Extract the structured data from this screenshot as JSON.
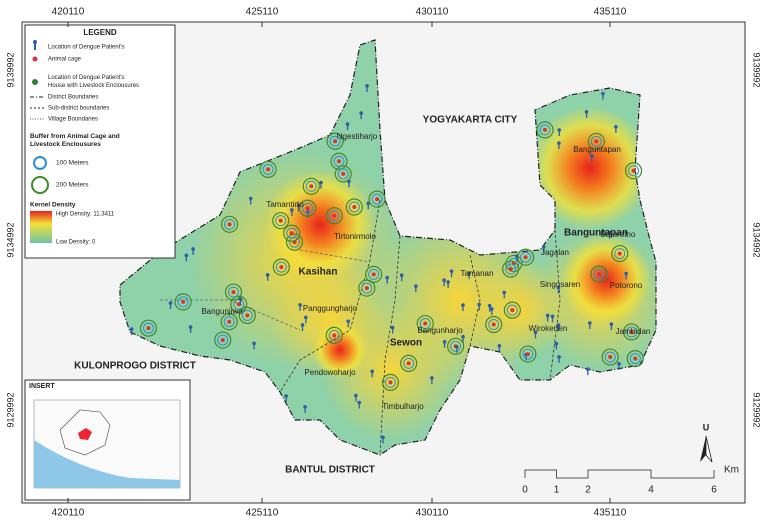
{
  "coordinates": {
    "easting": [
      420110,
      425110,
      430110,
      435110
    ],
    "northing": [
      9139992,
      9134992,
      9129992
    ]
  },
  "legend": {
    "title": "LEGEND",
    "points": [
      "Location of Dengue Patient's",
      "Animal cage",
      "Location of Dengue Patient's House with Livestock Enclousures"
    ],
    "lines": [
      "District Boundaries",
      "Sub-district boundaries",
      "Village Boundaries"
    ],
    "buffer_title": "Buffer from Animal Cage and Livestock Enclousures",
    "buffers": [
      "100 Meters",
      "200 Meters"
    ],
    "density_title": "Kernel Density",
    "density_high": "High Density: 11.3411",
    "density_low": "Low Density: 0"
  },
  "areas": [
    "YOGYAKARTA CITY",
    "KULONPROGO DISTRICT",
    "BANTUL DISTRICT"
  ],
  "subdistricts": [
    "Kasihan",
    "Sewon",
    "Banguntapan"
  ],
  "villages": [
    "Ngestiharjo",
    "Tamantirto",
    "Tirtonirmolo",
    "Bangunjiwo",
    "Panggungharjo",
    "Bangunharjo",
    "Pendowoharjo",
    "Timbulharjo",
    "Tamanan",
    "Jagalan",
    "Singosaren",
    "Wirokerten",
    "Jambidan",
    "Potorono",
    "Baturetno",
    "Banguntapan"
  ],
  "insert": "INSERT",
  "north": "U",
  "scale": {
    "ticks": [
      0,
      1,
      2,
      4,
      6
    ],
    "unit": "Km"
  }
}
